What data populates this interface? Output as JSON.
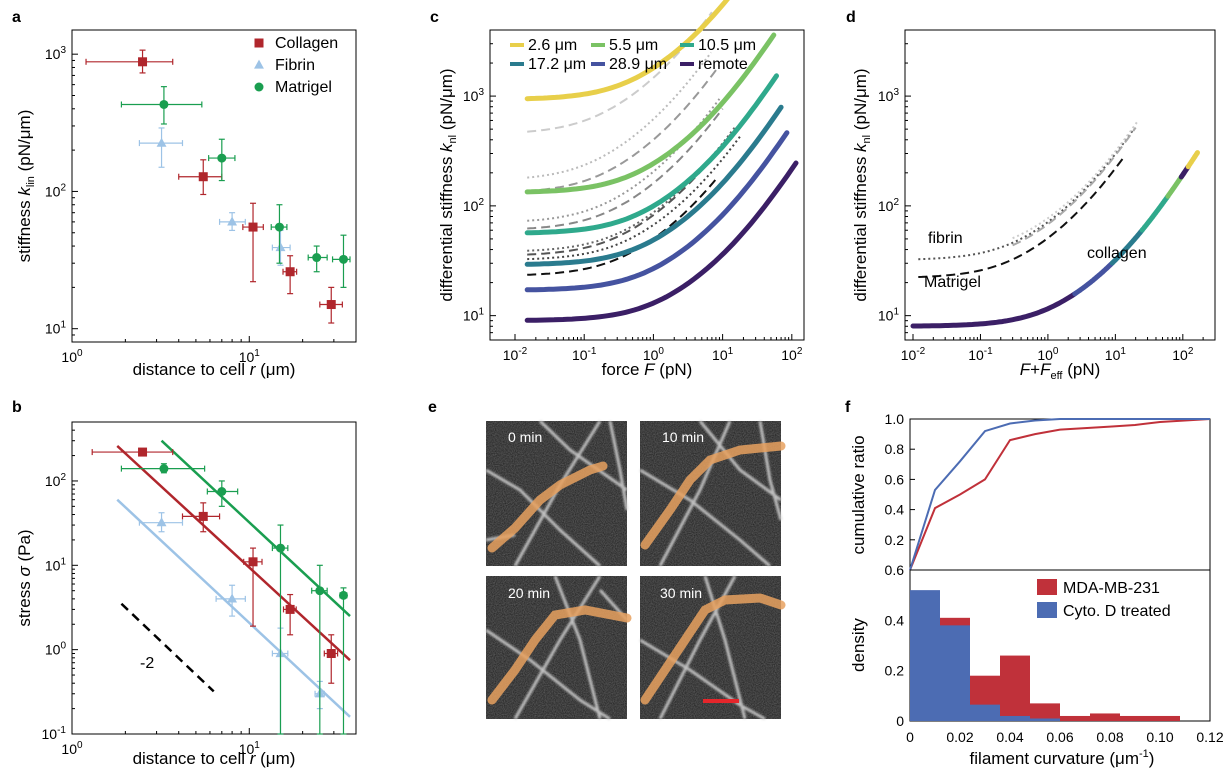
{
  "colors": {
    "collagen": "#b0262c",
    "fibrin": "#9dc3e6",
    "matrigel": "#1a9e50",
    "gray": "#999999",
    "mda": "#c0313a",
    "cyto": "#4c6cb3",
    "scale_bar": "#e5262b",
    "fiber_overlay": "#e8a15f"
  },
  "chart_data": [
    {
      "panel": "a",
      "type": "scatter",
      "xlabel_main": "distance to cell ",
      "xlabel_var": "r",
      "xlabel_unit": " (μm)",
      "ylabel_main": "stiffness ",
      "ylabel_var": "k",
      "ylabel_sub": "lin",
      "ylabel_unit": " (pN/μm)",
      "xscale": "log",
      "yscale": "log",
      "xlim": [
        1,
        40
      ],
      "ylim": [
        8,
        1500
      ],
      "xticks": [
        {
          "v": 1,
          "m": "10",
          "e": "0"
        },
        {
          "v": 10,
          "m": "10",
          "e": "1"
        }
      ],
      "yticks": [
        {
          "v": 10,
          "m": "10",
          "e": "1"
        },
        {
          "v": 100,
          "m": "10",
          "e": "2"
        },
        {
          "v": 1000,
          "m": "10",
          "e": "3"
        }
      ],
      "legend_position": "top-right",
      "series": [
        {
          "name": "Collagen",
          "color": "#b0262c",
          "marker": "square",
          "points": [
            {
              "x": 2.5,
              "y": 880,
              "xerr": [
                1.2,
                3.7
              ],
              "yerr": [
                730,
                1070
              ]
            },
            {
              "x": 5.5,
              "y": 128,
              "xerr": [
                4.0,
                7.0
              ],
              "yerr": [
                95,
                170
              ]
            },
            {
              "x": 10.5,
              "y": 55,
              "xerr": [
                9.2,
                12.0
              ],
              "yerr": [
                22,
                82
              ]
            },
            {
              "x": 17.0,
              "y": 26,
              "xerr": [
                15.5,
                18.5
              ],
              "yerr": [
                18,
                34
              ]
            },
            {
              "x": 29.0,
              "y": 15,
              "xerr": [
                25.0,
                33.5
              ],
              "yerr": [
                11,
                20
              ]
            }
          ]
        },
        {
          "name": "Fibrin",
          "color": "#9dc3e6",
          "marker": "triangle",
          "points": [
            {
              "x": 3.2,
              "y": 225,
              "xerr": [
                2.4,
                4.2
              ],
              "yerr": [
                150,
                290
              ]
            },
            {
              "x": 8.0,
              "y": 60,
              "xerr": [
                6.8,
                9.5
              ],
              "yerr": [
                52,
                70
              ]
            },
            {
              "x": 15.0,
              "y": 39,
              "xerr": [
                13.5,
                17.0
              ],
              "yerr": [
                29,
                52
              ]
            }
          ]
        },
        {
          "name": "Matrigel",
          "color": "#1a9e50",
          "marker": "circle",
          "points": [
            {
              "x": 3.3,
              "y": 430,
              "xerr": [
                1.9,
                5.4
              ],
              "yerr": [
                310,
                580
              ]
            },
            {
              "x": 7.0,
              "y": 175,
              "xerr": [
                5.9,
                8.3
              ],
              "yerr": [
                120,
                240
              ]
            },
            {
              "x": 14.8,
              "y": 55,
              "xerr": [
                13.3,
                16.3
              ],
              "yerr": [
                30,
                80
              ]
            },
            {
              "x": 24.0,
              "y": 33,
              "xerr": [
                21.5,
                27.5
              ],
              "yerr": [
                26,
                40
              ]
            },
            {
              "x": 34.0,
              "y": 32,
              "xerr": [
                29.5,
                37.0
              ],
              "yerr": [
                20,
                48
              ]
            }
          ]
        }
      ]
    },
    {
      "panel": "b",
      "type": "scatter",
      "xlabel_main": "distance to cell ",
      "xlabel_var": "r",
      "xlabel_unit": " (μm)",
      "ylabel_main": "stress ",
      "ylabel_var": "σ",
      "ylabel_unit": " (Pa)",
      "xscale": "log",
      "yscale": "log",
      "xlim": [
        1,
        40
      ],
      "ylim": [
        0.1,
        500
      ],
      "xticks": [
        {
          "v": 1,
          "m": "10",
          "e": "0"
        },
        {
          "v": 10,
          "m": "10",
          "e": "1"
        }
      ],
      "yticks": [
        {
          "v": 0.1,
          "m": "10",
          "e": "-1"
        },
        {
          "v": 1,
          "m": "10",
          "e": "0"
        },
        {
          "v": 10,
          "m": "10",
          "e": "1"
        },
        {
          "v": 100,
          "m": "10",
          "e": "2"
        }
      ],
      "slope_annotation": "-2",
      "slope_line": {
        "x": [
          1.9,
          6.3
        ],
        "y": [
          3.5,
          0.32
        ]
      },
      "series": [
        {
          "name": "Collagen",
          "color": "#b0262c",
          "marker": "square",
          "fit": {
            "x": [
              1.8,
              37
            ],
            "y": [
              260,
              0.75
            ]
          },
          "points": [
            {
              "x": 2.5,
              "y": 220,
              "xerr": [
                1.3,
                3.7
              ],
              "yerr": [
                200,
                240
              ]
            },
            {
              "x": 5.5,
              "y": 38,
              "xerr": [
                4.2,
                6.8
              ],
              "yerr": [
                25,
                55
              ]
            },
            {
              "x": 10.5,
              "y": 11,
              "xerr": [
                9.3,
                11.8
              ],
              "yerr": [
                1.9,
                16
              ]
            },
            {
              "x": 17.0,
              "y": 3.0,
              "xerr": [
                15.6,
                18.4
              ],
              "yerr": [
                1.5,
                4.5
              ]
            },
            {
              "x": 29.0,
              "y": 0.9,
              "xerr": [
                26.5,
                31.5
              ],
              "yerr": [
                0.4,
                1.5
              ]
            }
          ]
        },
        {
          "name": "Fibrin",
          "color": "#9dc3e6",
          "marker": "triangle",
          "fit": {
            "x": [
              1.8,
              37
            ],
            "y": [
              60,
              0.16
            ]
          },
          "points": [
            {
              "x": 3.2,
              "y": 32,
              "xerr": [
                2.4,
                4.2
              ],
              "yerr": [
                25,
                42
              ]
            },
            {
              "x": 8.0,
              "y": 4.0,
              "xerr": [
                6.5,
                9.5
              ],
              "yerr": [
                2.5,
                5.8
              ]
            },
            {
              "x": 15.0,
              "y": 0.9,
              "xerr": [
                13.5,
                16.5
              ],
              "yerr": [
                0.1,
                1.8
              ]
            },
            {
              "x": 25.0,
              "y": 0.3,
              "xerr": [
                23.5,
                26.5
              ],
              "yerr": [
                0.2,
                0.42
              ]
            }
          ]
        },
        {
          "name": "Matrigel",
          "color": "#1a9e50",
          "marker": "circle",
          "fit": {
            "x": [
              3.2,
              37
            ],
            "y": [
              300,
              2.5
            ]
          },
          "points": [
            {
              "x": 3.3,
              "y": 140,
              "xerr": [
                1.9,
                5.6
              ],
              "yerr": [
                125,
                160
              ]
            },
            {
              "x": 7.0,
              "y": 75,
              "xerr": [
                5.8,
                8.6
              ],
              "yerr": [
                50,
                100
              ]
            },
            {
              "x": 15.0,
              "y": 16,
              "xerr": [
                13.5,
                16.5
              ],
              "yerr": [
                0.1,
                30
              ]
            },
            {
              "x": 25.0,
              "y": 5.0,
              "xerr": [
                22.5,
                27.5
              ],
              "yerr": [
                0.1,
                10
              ]
            },
            {
              "x": 34.0,
              "y": 4.4,
              "xerr": [
                32.5,
                35.5
              ],
              "yerr": [
                0.1,
                5.4
              ]
            }
          ]
        }
      ]
    },
    {
      "panel": "c",
      "type": "line",
      "xlabel_main": "force ",
      "xlabel_var": "F",
      "xlabel_unit": " (pN)",
      "ylabel_main": "differential stiffness ",
      "ylabel_var": "k",
      "ylabel_sub": "nl",
      "ylabel_unit": " (pN/μm)",
      "xscale": "log",
      "yscale": "log",
      "xlim": [
        0.01,
        150
      ],
      "ylim": [
        6,
        4000
      ],
      "xticks": [
        {
          "v": 0.01,
          "m": "10",
          "e": "-2"
        },
        {
          "v": 0.1,
          "m": "10",
          "e": "-1"
        },
        {
          "v": 1,
          "m": "10",
          "e": "0"
        },
        {
          "v": 10,
          "m": "10",
          "e": "1"
        },
        {
          "v": 100,
          "m": "10",
          "e": "2"
        }
      ],
      "yticks": [
        {
          "v": 10,
          "m": "10",
          "e": "1"
        },
        {
          "v": 100,
          "m": "10",
          "e": "2"
        },
        {
          "v": 1000,
          "m": "10",
          "e": "3"
        }
      ],
      "legend_position": "top",
      "series": [
        {
          "name": "2.6   μm",
          "color": "#e8cf4a",
          "k0": 930,
          "F0": 48,
          "Fend": 48
        },
        {
          "name": "5.5   μm",
          "color": "#7ac264",
          "k0": 132,
          "F0": 55,
          "Fend": 55
        },
        {
          "name": "10.5 μm",
          "color": "#2fa98c",
          "k0": 56,
          "F0": 60,
          "Fend": 60
        },
        {
          "name": "17.2 μm",
          "color": "#2a7b8e",
          "k0": 29,
          "F0": 70,
          "Fend": 70
        },
        {
          "name": "28.9 μm",
          "color": "#4553a0",
          "k0": 17,
          "F0": 85,
          "Fend": 85
        },
        {
          "name": "remote",
          "color": "#3b1f66",
          "k0": 9,
          "F0": 115,
          "Fend": 115
        }
      ],
      "gray_curves": [
        {
          "style": "dash",
          "color": "#cccccc",
          "k0": 450,
          "F0": 9,
          "Fend": 7
        },
        {
          "style": "dot",
          "color": "#bbbbbb",
          "k0": 170,
          "F0": 7.5,
          "Fend": 6.8
        },
        {
          "style": "dash",
          "color": "#999999",
          "k0": 130,
          "F0": 10,
          "Fend": 9
        },
        {
          "style": "dot",
          "color": "#999999",
          "k0": 70,
          "F0": 11,
          "Fend": 9
        },
        {
          "style": "dash",
          "color": "#888888",
          "k0": 60,
          "F0": 13,
          "Fend": 10
        },
        {
          "style": "dot",
          "color": "#666666",
          "k0": 38,
          "F0": 18,
          "Fend": 15
        },
        {
          "style": "dash",
          "color": "#555555",
          "k0": 35,
          "F0": 17,
          "Fend": 14
        },
        {
          "style": "dash",
          "color": "#111111",
          "k0": 23,
          "F0": 20,
          "Fend": 8
        },
        {
          "style": "dot",
          "color": "#444444",
          "k0": 32,
          "F0": 22,
          "Fend": 18
        }
      ]
    },
    {
      "panel": "d",
      "type": "line",
      "xlabel_f1": "F",
      "xlabel_plus": "+",
      "xlabel_f2": "F",
      "xlabel_sub": "eff",
      "xlabel_unit": " (pN)",
      "ylabel_main": "differential stiffness ",
      "ylabel_var": "k",
      "ylabel_sub": "nl",
      "ylabel_unit": " (pN/μm)",
      "xscale": "log",
      "yscale": "log",
      "xlim": [
        0.01,
        300
      ],
      "ylim": [
        6,
        4000
      ],
      "xticks": [
        {
          "v": 0.01,
          "m": "10",
          "e": "-2"
        },
        {
          "v": 0.1,
          "m": "10",
          "e": "-1"
        },
        {
          "v": 1,
          "m": "10",
          "e": "0"
        },
        {
          "v": 10,
          "m": "10",
          "e": "1"
        },
        {
          "v": 100,
          "m": "10",
          "e": "2"
        }
      ],
      "yticks": [
        {
          "v": 10,
          "m": "10",
          "e": "1"
        },
        {
          "v": 100,
          "m": "10",
          "e": "2"
        },
        {
          "v": 1000,
          "m": "10",
          "e": "3"
        }
      ],
      "master_curve": {
        "k0": 8,
        "F0": 115,
        "Fend": 160
      },
      "master_segments": [
        {
          "color": "#3b1f66",
          "from": 0.01,
          "to": 2.5
        },
        {
          "color": "#4553a0",
          "from": 2.5,
          "to": 9
        },
        {
          "color": "#2a7b8e",
          "from": 9,
          "to": 25
        },
        {
          "color": "#2fa98c",
          "from": 25,
          "to": 60
        },
        {
          "color": "#7ac264",
          "from": 60,
          "to": 95
        },
        {
          "color": "#3b1f66",
          "from": 95,
          "to": 120
        },
        {
          "color": "#e8cf4a",
          "from": 120,
          "to": 165
        }
      ],
      "gray_curves": [
        {
          "style": "dot",
          "color": "#555555",
          "k0": 32,
          "F0": 24,
          "from": 0.012,
          "to": 19
        },
        {
          "style": "dash",
          "color": "#111111",
          "k0": 22,
          "F0": 22,
          "from": 0.012,
          "to": 14
        },
        {
          "style": "dash",
          "color": "#aaaaaa",
          "k0": 30,
          "F0": 23,
          "from": 0.3,
          "to": 20
        },
        {
          "style": "dot",
          "color": "#cccccc",
          "k0": 36,
          "F0": 26,
          "from": 0.3,
          "to": 21
        }
      ],
      "annotations": [
        "fibrin",
        "Matrigel",
        "collagen"
      ]
    },
    {
      "panel": "f_top",
      "type": "line",
      "ylabel": "cumulative ratio",
      "xlim": [
        0,
        0.12
      ],
      "ylim": [
        0,
        1.0
      ],
      "yticks": [
        0,
        0.2,
        0.4,
        0.6,
        0.8,
        1.0
      ],
      "ytick_labels": [
        "",
        "0.2",
        "0.4",
        "0.6",
        "0.8",
        "1.0"
      ],
      "series": [
        {
          "name": "MDA-MB-231",
          "color": "#c0313a",
          "x": [
            0,
            0.01,
            0.02,
            0.03,
            0.04,
            0.05,
            0.06,
            0.07,
            0.08,
            0.09,
            0.1,
            0.11,
            0.12
          ],
          "y": [
            0,
            0.41,
            0.5,
            0.6,
            0.86,
            0.9,
            0.93,
            0.94,
            0.95,
            0.96,
            0.98,
            0.99,
            1.0
          ]
        },
        {
          "name": "Cyto. D treated",
          "color": "#4c6cb3",
          "x": [
            0,
            0.01,
            0.02,
            0.03,
            0.04,
            0.05,
            0.06,
            0.12
          ],
          "y": [
            0,
            0.53,
            0.72,
            0.92,
            0.97,
            0.99,
            1.0,
            1.0
          ]
        }
      ]
    },
    {
      "panel": "f_bottom",
      "type": "bar",
      "xlabel_main": "filament curvature (μm",
      "xlabel_exp": "-1",
      "xlabel_end": ")",
      "ylabel": "density",
      "xlim": [
        0,
        0.12
      ],
      "ylim": [
        0,
        0.6
      ],
      "xticks": [
        0,
        0.02,
        0.04,
        0.06,
        0.08,
        0.1,
        0.12
      ],
      "xtick_labels": [
        "0",
        "0.02",
        "0.04",
        "0.06",
        "0.08",
        "0.10",
        "0.12"
      ],
      "yticks": [
        0,
        0.2,
        0.4,
        0.6
      ],
      "ytick_labels": [
        "0",
        "0.2",
        "0.4",
        "0.6"
      ],
      "bin_width": 0.012,
      "legend_position": "top-right",
      "series": [
        {
          "name": "MDA-MB-231",
          "color": "#c0313a",
          "x": [
            0.018,
            0.03,
            0.042,
            0.054,
            0.066,
            0.078,
            0.09,
            0.102,
            0.114
          ],
          "y": [
            0.41,
            0.18,
            0.26,
            0.07,
            0.02,
            0.03,
            0.02,
            0.02,
            0.0
          ]
        },
        {
          "name": "Cyto. D treated",
          "color": "#4c6cb3",
          "x": [
            0.006,
            0.018,
            0.03,
            0.042,
            0.054
          ],
          "y": [
            0.52,
            0.38,
            0.065,
            0.02,
            0.01
          ]
        }
      ]
    }
  ],
  "panel_labels": {
    "a": "a",
    "b": "b",
    "c": "c",
    "d": "d",
    "e": "e",
    "f": "f"
  },
  "micrographs": [
    {
      "label": "0 min"
    },
    {
      "label": "10 min"
    },
    {
      "label": "20 min"
    },
    {
      "label": "30 min"
    }
  ]
}
